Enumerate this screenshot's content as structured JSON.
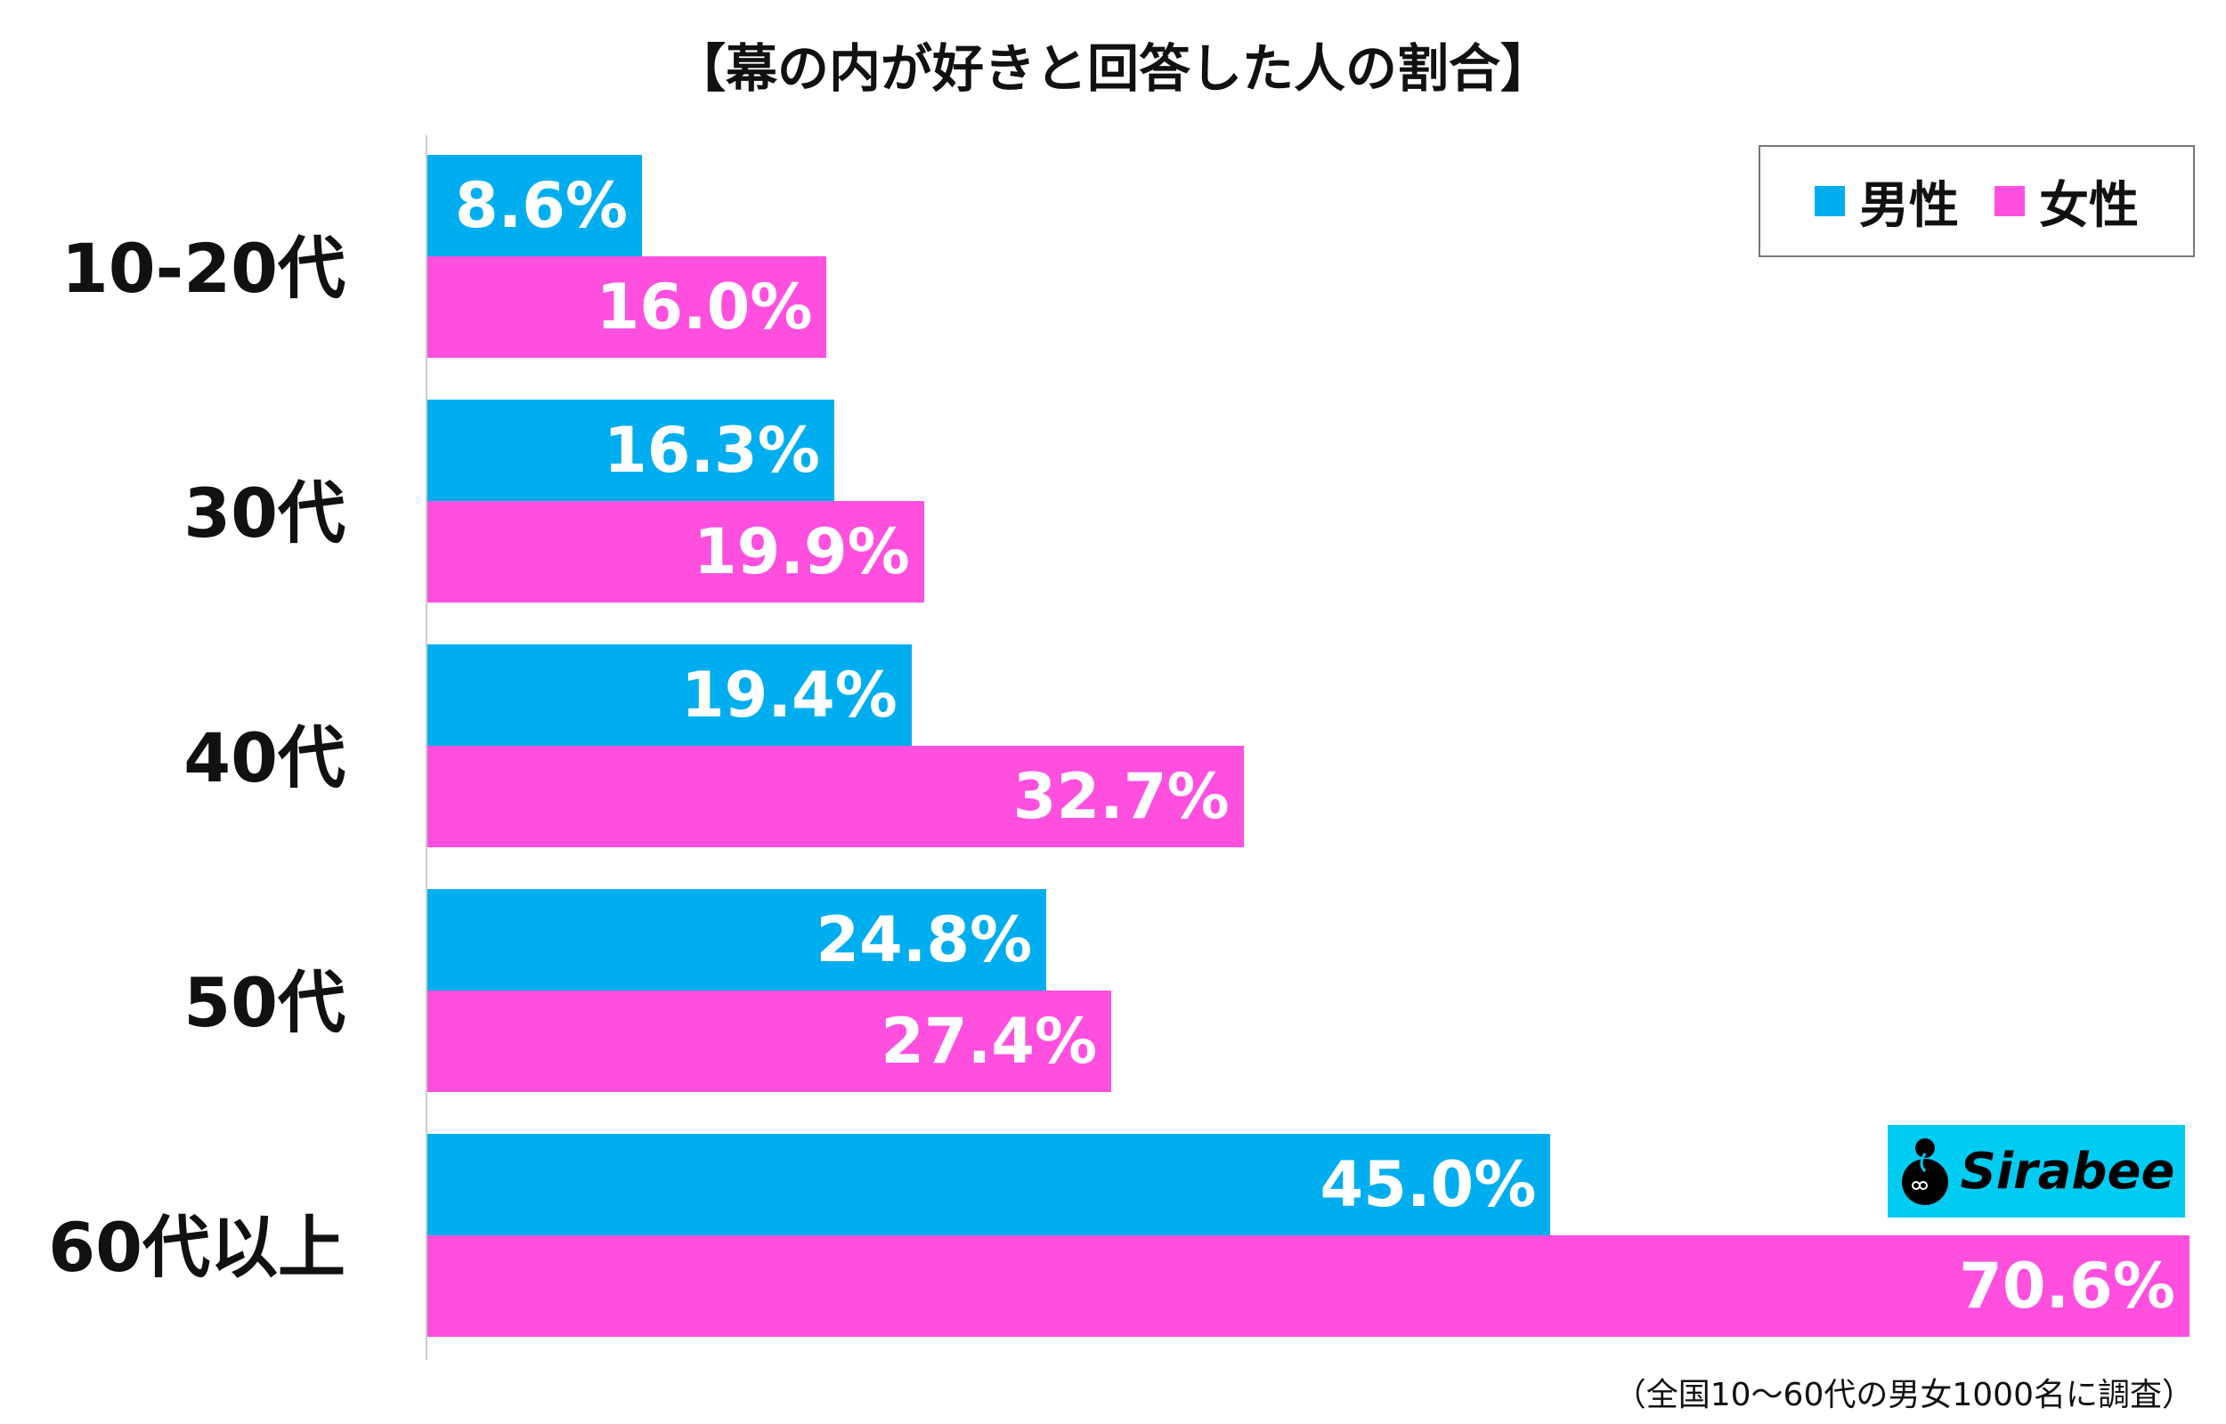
{
  "chart_data": {
    "type": "bar",
    "orientation": "horizontal",
    "title": "【幕の内が好きと回答した人の割合】",
    "categories": [
      "10-20代",
      "30代",
      "40代",
      "50代",
      "60代以上"
    ],
    "series": [
      {
        "name": "男性",
        "color": "#00AEEF",
        "values": [
          8.6,
          16.3,
          19.4,
          24.8,
          45.0
        ]
      },
      {
        "name": "女性",
        "color": "#FF4FDF",
        "values": [
          16.0,
          19.9,
          32.7,
          27.4,
          70.6
        ]
      }
    ],
    "value_labels": {
      "男性": [
        "8.6%",
        "16.3%",
        "19.4%",
        "24.8%",
        "45.0%"
      ],
      "女性": [
        "16.0%",
        "19.9%",
        "32.7%",
        "27.4%",
        "70.6%"
      ]
    },
    "xlim": [
      0,
      70.6
    ],
    "legend_position": "top-right",
    "grid": false,
    "note": "（全国10〜60代の男女1000名に調査）"
  },
  "logo": {
    "text": "Sirabee"
  }
}
